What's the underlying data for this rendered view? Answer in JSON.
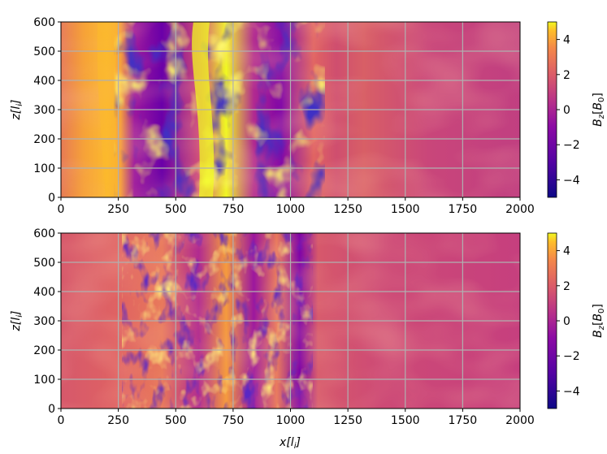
{
  "figure": {
    "shared_xlabel": "x[l_i]",
    "cbar_label": "B_z[B_0]"
  },
  "chart_data": [
    {
      "type": "heatmap",
      "panel": "top",
      "xlabel": "",
      "ylabel": "z[l_i]",
      "xlim": [
        0,
        2000
      ],
      "ylim": [
        0,
        600
      ],
      "xticks": [
        0,
        250,
        500,
        750,
        1000,
        1250,
        1500,
        1750,
        2000
      ],
      "yticks": [
        0,
        100,
        200,
        300,
        400,
        500,
        600
      ],
      "grid": true,
      "colormap": "plasma",
      "colorbar": {
        "label": "B_z[B_0]",
        "range": [
          -5,
          5
        ],
        "ticks": [
          -4,
          -2,
          0,
          2,
          4
        ]
      },
      "features": {
        "strong_positive_band_x": [
          50,
          280
        ],
        "turbulent_region_x": [
          270,
          1250
        ],
        "calm_region_x": [
          1250,
          2000
        ]
      }
    },
    {
      "type": "heatmap",
      "panel": "bottom",
      "xlabel": "x[l_i]",
      "ylabel": "z[l_i]",
      "xlim": [
        0,
        2000
      ],
      "ylim": [
        0,
        600
      ],
      "xticks": [
        0,
        250,
        500,
        750,
        1000,
        1250,
        1500,
        1750,
        2000
      ],
      "yticks": [
        0,
        100,
        200,
        300,
        400,
        500,
        600
      ],
      "grid": true,
      "colormap": "plasma",
      "colorbar": {
        "label": "B_z[B_0]",
        "range": [
          -5,
          5
        ],
        "ticks": [
          -4,
          -2,
          0,
          2,
          4
        ]
      },
      "features": {
        "turbulent_region_x": [
          300,
          1100
        ],
        "calm_region_x": [
          1100,
          2000
        ]
      }
    }
  ],
  "colors": {
    "deep_purple": "#0d0887",
    "violet": "#6a00a8",
    "magenta": "#b12a90",
    "pink_orange": "#e16462",
    "orange": "#fca636",
    "yellow": "#f0f921",
    "grid": "#b0b0b0"
  }
}
